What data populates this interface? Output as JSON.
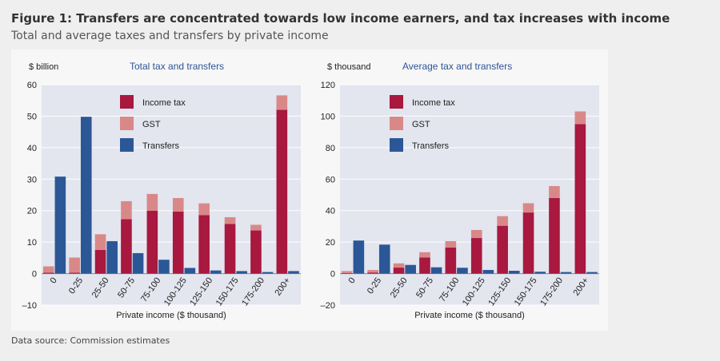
{
  "figure": {
    "title": "Figure 1: Transfers are concentrated towards low income earners, and tax increases with income",
    "subtitle": "Total and average taxes and transfers by private income",
    "source": "Data source: Commission estimates"
  },
  "colors": {
    "income_tax": "#a8183f",
    "gst": "#d98888",
    "transfers": "#2b5797",
    "plot_bg": "#e3e5ef",
    "panel_title": "#2d5496"
  },
  "chart_data": [
    {
      "type": "bar",
      "stacked": true,
      "title": "Total tax and transfers",
      "ylabel": "$ billion",
      "xlabel": "Private income ($ thousand)",
      "ylim": [
        -10,
        60
      ],
      "yticks": [
        -10,
        0,
        10,
        20,
        30,
        40,
        50,
        60
      ],
      "ytick_labels": [
        "–10",
        "0",
        "10",
        "20",
        "30",
        "40",
        "50",
        "60"
      ],
      "categories": [
        "0",
        "0-25",
        "25-50",
        "50-75",
        "75-100",
        "100-125",
        "125-150",
        "150-175",
        "175-200",
        "200+"
      ],
      "series": [
        {
          "name": "Income tax",
          "color": "#a8183f",
          "stack": "tax",
          "values": [
            0.3,
            0.3,
            7.5,
            17.3,
            20,
            19.7,
            18.6,
            15.8,
            13.7,
            52
          ]
        },
        {
          "name": "GST",
          "color": "#d98888",
          "stack": "tax",
          "values": [
            2,
            4.8,
            5,
            5.7,
            5.3,
            4.3,
            3.7,
            2.1,
            1.8,
            4.6
          ]
        },
        {
          "name": "Transfers",
          "color": "#2b5797",
          "stack": "transfers",
          "values": [
            30.8,
            49.8,
            10.3,
            6.5,
            4.4,
            1.8,
            1,
            0.8,
            0.5,
            0.8
          ]
        }
      ],
      "legend": {
        "position": "top-center",
        "items": [
          "Income tax",
          "GST",
          "Transfers"
        ]
      }
    },
    {
      "type": "bar",
      "stacked": true,
      "title": "Average tax and transfers",
      "ylabel": "$ thousand",
      "xlabel": "Private income ($ thousand)",
      "ylim": [
        -20,
        120
      ],
      "yticks": [
        -20,
        0,
        20,
        40,
        60,
        80,
        100,
        120
      ],
      "ytick_labels": [
        "–20",
        "0",
        "20",
        "40",
        "60",
        "80",
        "100",
        "120"
      ],
      "categories": [
        "0",
        "0-25",
        "25-50",
        "50-75",
        "75-100",
        "100-125",
        "125-150",
        "150-175",
        "175-200",
        "200+"
      ],
      "series": [
        {
          "name": "Income tax",
          "color": "#a8183f",
          "stack": "tax",
          "values": [
            0.3,
            0.7,
            3.8,
            10.3,
            16.6,
            22.6,
            30.4,
            38.8,
            48,
            95
          ]
        },
        {
          "name": "GST",
          "color": "#d98888",
          "stack": "tax",
          "values": [
            1.3,
            1.6,
            2.7,
            3.3,
            4,
            5.1,
            6.1,
            5.9,
            7.6,
            8
          ]
        },
        {
          "name": "Transfers",
          "color": "#2b5797",
          "stack": "transfers",
          "values": [
            21,
            18.4,
            5.5,
            4,
            3.7,
            2.3,
            1.8,
            1.2,
            1,
            1
          ]
        }
      ],
      "legend": {
        "position": "top-center",
        "items": [
          "Income tax",
          "GST",
          "Transfers"
        ]
      }
    }
  ]
}
